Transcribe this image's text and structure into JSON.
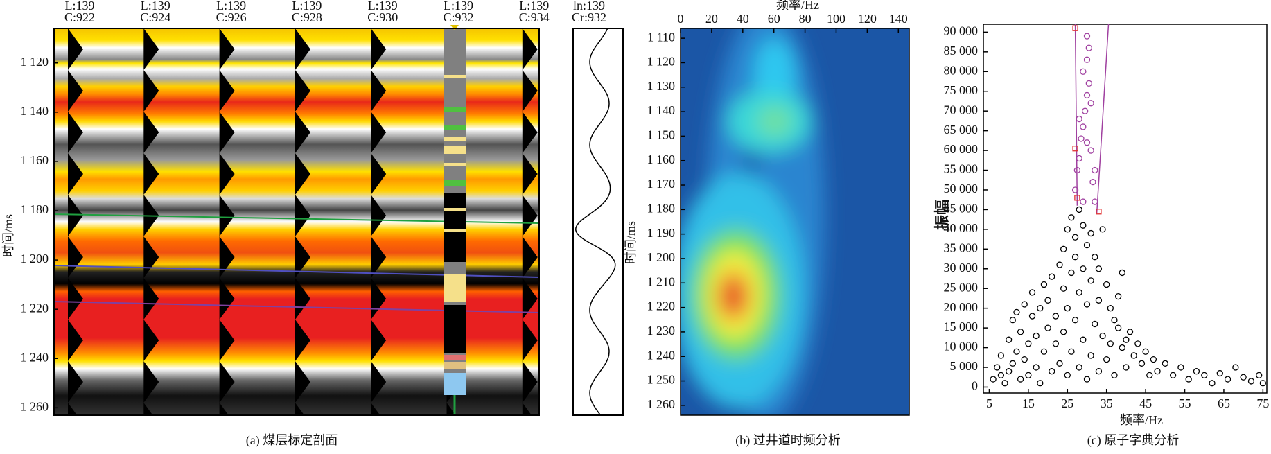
{
  "chart_data": [
    {
      "type": "seismic",
      "caption": "(a) 煤层标定剖面",
      "ylabel": "时间/ms",
      "ylim": [
        1106,
        1263
      ],
      "yticks": [
        {
          "value": 1120,
          "label": "1 120"
        },
        {
          "value": 1140,
          "label": "1 140"
        },
        {
          "value": 1160,
          "label": "1 160"
        },
        {
          "value": 1180,
          "label": "1 180"
        },
        {
          "value": 1200,
          "label": "1 200"
        },
        {
          "value": 1220,
          "label": "1 220"
        },
        {
          "value": 1240,
          "label": "1 240"
        },
        {
          "value": 1260,
          "label": "1 260"
        }
      ],
      "traces": [
        {
          "line": "L:139",
          "cdp": "C:922"
        },
        {
          "line": "L:139",
          "cdp": "C:924"
        },
        {
          "line": "L:139",
          "cdp": "C:926"
        },
        {
          "line": "L:139",
          "cdp": "C:928"
        },
        {
          "line": "L:139",
          "cdp": "C:930"
        },
        {
          "line": "L:139",
          "cdp": "C:932"
        },
        {
          "line": "L:139",
          "cdp": "C:934"
        }
      ],
      "trace_panel": {
        "line": "ln:139",
        "cdp": "Cr:932"
      }
    },
    {
      "type": "heatmap",
      "caption": "(b) 过井道时频分析",
      "xlabel": "频率/Hz",
      "ylabel": "时间/ms",
      "xlim": [
        0,
        147
      ],
      "ylim": [
        1106,
        1264
      ],
      "xticks": [
        0,
        20,
        40,
        60,
        80,
        100,
        120,
        140
      ],
      "yticks": [
        {
          "value": 1110,
          "label": "1 110"
        },
        {
          "value": 1120,
          "label": "1 120"
        },
        {
          "value": 1130,
          "label": "1 130"
        },
        {
          "value": 1140,
          "label": "1 140"
        },
        {
          "value": 1150,
          "label": "1 150"
        },
        {
          "value": 1160,
          "label": "1 160"
        },
        {
          "value": 1170,
          "label": "1 170"
        },
        {
          "value": 1180,
          "label": "1 180"
        },
        {
          "value": 1190,
          "label": "1 190"
        },
        {
          "value": 1200,
          "label": "1 200"
        },
        {
          "value": 1210,
          "label": "1 210"
        },
        {
          "value": 1220,
          "label": "1 220"
        },
        {
          "value": 1230,
          "label": "1 230"
        },
        {
          "value": 1240,
          "label": "1 240"
        },
        {
          "value": 1250,
          "label": "1 250"
        },
        {
          "value": 1260,
          "label": "1 260"
        }
      ]
    },
    {
      "type": "scatter",
      "caption": "(c) 原子字典分析",
      "xlabel": "频率/Hz",
      "ylabel": "振幅",
      "xlim": [
        3.5,
        76
      ],
      "ylim": [
        -1500,
        92000
      ],
      "xticks": [
        5,
        15,
        25,
        35,
        45,
        55,
        65,
        75
      ],
      "yticks": [
        0,
        {
          "value": 5000,
          "label": "5 000"
        },
        {
          "value": 10000,
          "label": "10 000"
        },
        {
          "value": 15000,
          "label": "15 000"
        },
        {
          "value": 20000,
          "label": "20 000"
        },
        {
          "value": 25000,
          "label": "25 000"
        },
        {
          "value": 30000,
          "label": "30 000"
        },
        {
          "value": 35000,
          "label": "35 000"
        },
        {
          "value": 40000,
          "label": "40 000"
        },
        {
          "value": 45000,
          "label": "45 000"
        },
        {
          "value": 50000,
          "label": "50 000"
        },
        {
          "value": 55000,
          "label": "55 000"
        },
        {
          "value": 60000,
          "label": "60 000"
        },
        {
          "value": 65000,
          "label": "65 000"
        },
        {
          "value": 70000,
          "label": "70 000"
        },
        {
          "value": 75000,
          "label": "75 000"
        },
        {
          "value": 80000,
          "label": "80 000"
        },
        {
          "value": 85000,
          "label": "85 000"
        },
        {
          "value": 90000,
          "label": "90 000"
        }
      ],
      "series": [
        {
          "color": "#000000",
          "marker": "circle",
          "x": [
            6,
            7,
            8,
            8,
            9,
            10,
            10,
            11,
            11,
            12,
            12,
            13,
            13,
            14,
            14,
            15,
            15,
            16,
            16,
            17,
            17,
            18,
            18,
            19,
            19,
            20,
            20,
            21,
            21,
            22,
            22,
            23,
            23,
            24,
            24,
            24,
            25,
            25,
            25,
            26,
            26,
            26,
            27,
            27,
            27,
            28,
            28,
            28,
            29,
            29,
            29,
            30,
            30,
            30,
            31,
            31,
            31,
            32,
            32,
            33,
            33,
            33,
            34,
            34,
            35,
            35,
            36,
            36,
            37,
            37,
            38,
            38,
            39,
            39,
            40,
            40,
            41,
            42,
            43,
            44,
            45,
            46,
            47,
            48,
            50,
            52,
            54,
            56,
            58,
            60,
            62,
            64,
            66,
            68,
            70,
            72,
            74,
            75
          ],
          "values": [
            2000,
            5000,
            3000,
            8000,
            1000,
            12000,
            4000,
            17000,
            6000,
            9000,
            19000,
            2000,
            14000,
            21000,
            7000,
            11000,
            3000,
            18000,
            24000,
            5000,
            13000,
            20000,
            1000,
            26000,
            9000,
            15000,
            22000,
            4000,
            28000,
            18000,
            11000,
            31000,
            6000,
            25000,
            35000,
            14000,
            40000,
            20000,
            3000,
            43000,
            29000,
            9000,
            38000,
            33000,
            17000,
            45000,
            24000,
            5000,
            41000,
            30000,
            12000,
            36000,
            21000,
            2000,
            39000,
            27000,
            8000,
            33000,
            16000,
            30000,
            22000,
            4000,
            40000,
            13000,
            26000,
            7000,
            20000,
            11000,
            17000,
            3000,
            15000,
            23000,
            10000,
            29000,
            12000,
            5000,
            14000,
            8000,
            11000,
            6000,
            9000,
            3000,
            7000,
            4000,
            6000,
            3000,
            5000,
            2000,
            4000,
            3000,
            1000,
            3500,
            2000,
            5000,
            2500,
            1500,
            3000,
            1000
          ]
        },
        {
          "color": "#a040a0",
          "marker": "circle",
          "x": [
            27,
            27.5,
            28,
            28.5,
            29,
            29.5,
            30,
            30.5,
            29,
            30,
            30.5,
            30,
            31,
            31.5,
            32,
            29,
            28,
            31,
            30,
            32
          ],
          "values": [
            50000,
            55000,
            58000,
            63000,
            66000,
            70000,
            74000,
            77000,
            80000,
            83000,
            86000,
            89000,
            60000,
            52000,
            47000,
            47000,
            68000,
            72000,
            62000,
            55000
          ]
        },
        {
          "color": "#a040a0",
          "marker": "line",
          "x": [
            27.5,
            27
          ],
          "values": [
            46000,
            92000
          ]
        },
        {
          "color": "#a040a0",
          "marker": "line",
          "x": [
            32.5,
            35.5
          ],
          "values": [
            44000,
            92000
          ]
        },
        {
          "color": "#e03030",
          "marker": "square",
          "x": [
            27,
            27,
            33,
            27.5
          ],
          "values": [
            91000,
            60500,
            44500,
            48000
          ]
        }
      ]
    }
  ]
}
